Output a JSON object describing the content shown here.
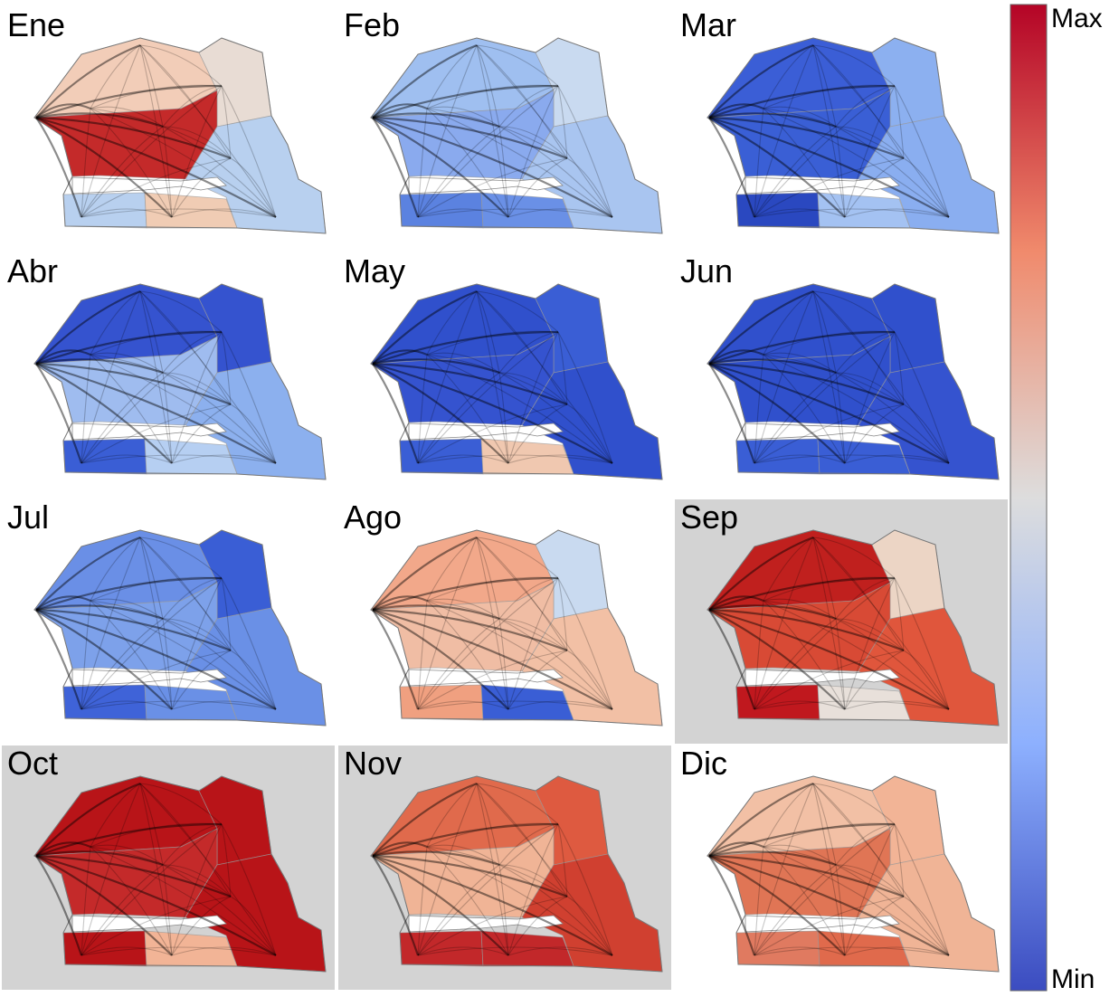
{
  "panels": [
    {
      "label": "Ene",
      "shaded": false,
      "region_colors": [
        "#f2cdb8",
        "#e8dcd4",
        "#c42a2a",
        "#b8d0ef",
        "#b8d0ef",
        "#f0ccb4"
      ]
    },
    {
      "label": "Feb",
      "shaded": false,
      "region_colors": [
        "#9fbff0",
        "#c9daf0",
        "#8aaaee",
        "#a9c5f0",
        "#5b82e0",
        "#6a90e6"
      ]
    },
    {
      "label": "Mar",
      "shaded": false,
      "region_colors": [
        "#3b5ed6",
        "#8cb0f0",
        "#3a5fd5",
        "#8aaef0",
        "#2a48c0",
        "#a4c2f2"
      ]
    },
    {
      "label": "Abr",
      "shaded": false,
      "region_colors": [
        "#3553cf",
        "#3553cf",
        "#9fbcef",
        "#8cb0ee",
        "#3a5ed5",
        "#b6cff2"
      ]
    },
    {
      "label": "May",
      "shaded": false,
      "region_colors": [
        "#3050cc",
        "#3a5ed5",
        "#3553cf",
        "#3050cc",
        "#3a5ed5",
        "#f0c8b0"
      ]
    },
    {
      "label": "Jun",
      "shaded": false,
      "region_colors": [
        "#3050cc",
        "#3050cc",
        "#3050cc",
        "#3553cf",
        "#3a5ed5",
        "#3a5ed5"
      ]
    },
    {
      "label": "Jul",
      "shaded": false,
      "region_colors": [
        "#6a8fe6",
        "#3a5ed5",
        "#7da1ea",
        "#6a90e6",
        "#3f63d8",
        "#6a90e6"
      ]
    },
    {
      "label": "Ago",
      "shaded": false,
      "region_colors": [
        "#f2a88a",
        "#c9daf0",
        "#f0bda4",
        "#f2c0a5",
        "#f0a080",
        "#3a5ed5"
      ]
    },
    {
      "label": "Sep",
      "shaded": true,
      "region_colors": [
        "#c0201e",
        "#ecd5c5",
        "#d84a35",
        "#e0563c",
        "#c0181e",
        "#e8e0da"
      ]
    },
    {
      "label": "Oct",
      "shaded": true,
      "region_colors": [
        "#b81418",
        "#b81418",
        "#c42a2a",
        "#b81418",
        "#b81418",
        "#f2b496"
      ]
    },
    {
      "label": "Nov",
      "shaded": true,
      "region_colors": [
        "#e06a4c",
        "#de5a40",
        "#f0b496",
        "#d04030",
        "#c2282a",
        "#c2282a"
      ]
    },
    {
      "label": "Dic",
      "shaded": false,
      "region_colors": [
        "#f2c0a5",
        "#f2b496",
        "#e07555",
        "#f0b496",
        "#e07a60",
        "#e06a4c"
      ]
    }
  ],
  "colorbar": {
    "max_label": "Max",
    "min_label": "Min",
    "colors": [
      "#b40426",
      "#f08a6c",
      "#dddddd",
      "#8db0fe",
      "#3b4cc0"
    ]
  }
}
